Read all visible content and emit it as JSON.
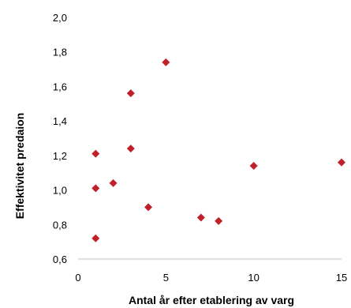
{
  "chart_data": {
    "type": "scatter",
    "xlabel": "Antal år efter etablering av varg",
    "ylabel": "Effektivitet predaion",
    "xlim": [
      0,
      15
    ],
    "ylim": [
      0.6,
      2.0
    ],
    "x_ticks": [
      0,
      5,
      10,
      15
    ],
    "y_ticks": [
      "0,6",
      "0,8",
      "1,0",
      "1,2",
      "1,4",
      "1,6",
      "1,8",
      "2,0"
    ],
    "y_tick_values": [
      0.6,
      0.8,
      1.0,
      1.2,
      1.4,
      1.6,
      1.8,
      2.0
    ],
    "grid": false,
    "marker": "diamond",
    "marker_color": "#c0202a",
    "series": [
      {
        "points": [
          {
            "x": 1,
            "y": 1.21
          },
          {
            "x": 1,
            "y": 1.01
          },
          {
            "x": 1,
            "y": 0.72
          },
          {
            "x": 2,
            "y": 1.04
          },
          {
            "x": 3,
            "y": 1.56
          },
          {
            "x": 3,
            "y": 1.24
          },
          {
            "x": 4,
            "y": 0.9
          },
          {
            "x": 5,
            "y": 1.74
          },
          {
            "x": 7,
            "y": 0.84
          },
          {
            "x": 8,
            "y": 0.82
          },
          {
            "x": 10,
            "y": 1.14
          },
          {
            "x": 15,
            "y": 1.16
          }
        ]
      }
    ]
  }
}
